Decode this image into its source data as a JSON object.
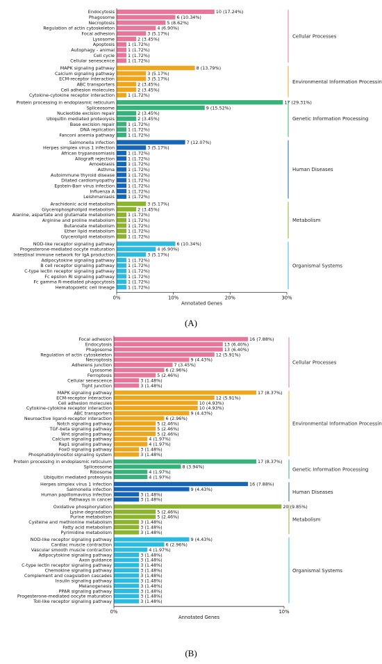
{
  "colors": {
    "Cellular Processes": "#e8769a",
    "Environmental Information Processing": "#eea61d",
    "Genetic Information Processing": "#37b37a",
    "Human Diseases": "#1565b8",
    "Metabolism": "#8db42e",
    "Organismal Systems": "#2cbbe0"
  },
  "panel_labels": [
    "(A)",
    "(B)"
  ],
  "chart_data": [
    {
      "type": "bar",
      "orientation": "horizontal",
      "xlabel": "Annotated Genes",
      "xlim": [
        0,
        30
      ],
      "x_ticks": [
        "0%",
        "10%",
        "20%",
        "30%"
      ],
      "groups": [
        {
          "name": "Cellular Processes",
          "items": [
            {
              "label": "Endocytosis",
              "value": 17.24,
              "text": "10 (17.24%)"
            },
            {
              "label": "Phagosome",
              "value": 10.34,
              "text": "6 (10.34%)"
            },
            {
              "label": "Necroptosis",
              "value": 8.62,
              "text": "5 (8.62%)"
            },
            {
              "label": "Regulation of actin cytoskeleton",
              "value": 6.9,
              "text": "4 (6.90%)"
            },
            {
              "label": "Focal adhesion",
              "value": 5.17,
              "text": "3 (5.17%)"
            },
            {
              "label": "Lysosome",
              "value": 3.45,
              "text": "2 (3.45%)"
            },
            {
              "label": "Apoptosis",
              "value": 1.72,
              "text": "1 (1.72%)"
            },
            {
              "label": "Autophagy - animal",
              "value": 1.72,
              "text": "1 (1.72%)"
            },
            {
              "label": "Cell cycle",
              "value": 1.72,
              "text": "1 (1.72%)"
            },
            {
              "label": "Cellular senescence",
              "value": 1.72,
              "text": "1 (1.72%)"
            }
          ]
        },
        {
          "name": "Environmental Information Processing",
          "items": [
            {
              "label": "MAPK signaling pathway",
              "value": 13.79,
              "text": "8 (13.79%)"
            },
            {
              "label": "Calcium signaling pathway",
              "value": 5.17,
              "text": "3 (5.17%)"
            },
            {
              "label": "ECM-receptor interaction",
              "value": 5.17,
              "text": "3 (5.17%)"
            },
            {
              "label": "ABC transporters",
              "value": 3.45,
              "text": "2 (3.45%)"
            },
            {
              "label": "Cell adhesion molecules",
              "value": 3.45,
              "text": "2 (3.45%)"
            },
            {
              "label": "Cytokine-cytokine receptor interaction",
              "value": 1.72,
              "text": "1 (1.72%)"
            }
          ]
        },
        {
          "name": "Genetic Information Processing",
          "items": [
            {
              "label": "Protein processing in endoplasmic reticulum",
              "value": 29.31,
              "text": "17 (29.31%)"
            },
            {
              "label": "Spliceosome",
              "value": 15.52,
              "text": "9 (15.52%)"
            },
            {
              "label": "Nucleotide excision repair",
              "value": 3.45,
              "text": "2 (3.45%)"
            },
            {
              "label": "Ubiquitin mediated proteolysis",
              "value": 3.45,
              "text": "2 (3.45%)"
            },
            {
              "label": "Base excision repair",
              "value": 1.72,
              "text": "1 (1.72%)"
            },
            {
              "label": "DNA replication",
              "value": 1.72,
              "text": "1 (1.72%)"
            },
            {
              "label": "Fanconi anemia pathway",
              "value": 1.72,
              "text": "1 (1.72%)"
            }
          ]
        },
        {
          "name": "Human Diseases",
          "items": [
            {
              "label": "Salmonella infection",
              "value": 12.07,
              "text": "7 (12.07%)"
            },
            {
              "label": "Herpes simplex virus 1 infection",
              "value": 5.17,
              "text": "3 (5.17%)"
            },
            {
              "label": "African trypanosomiasis",
              "value": 1.72,
              "text": "1 (1.72%)"
            },
            {
              "label": "Allograft rejection",
              "value": 1.72,
              "text": "1 (1.72%)"
            },
            {
              "label": "Amoebiasis",
              "value": 1.72,
              "text": "1 (1.72%)"
            },
            {
              "label": "Asthma",
              "value": 1.72,
              "text": "1 (1.72%)"
            },
            {
              "label": "Autoimmune thyroid disease",
              "value": 1.72,
              "text": "1 (1.72%)"
            },
            {
              "label": "Dilated cardiomyopathy",
              "value": 1.72,
              "text": "1 (1.72%)"
            },
            {
              "label": "Epstein-Barr virus infection",
              "value": 1.72,
              "text": "1 (1.72%)"
            },
            {
              "label": "Influenza A",
              "value": 1.72,
              "text": "1 (1.72%)"
            },
            {
              "label": "Leishmaniasis",
              "value": 1.72,
              "text": "1 (1.72%)"
            }
          ]
        },
        {
          "name": "Metabolism",
          "items": [
            {
              "label": "Arachidonic acid metabolism",
              "value": 5.17,
              "text": "3 (5.17%)"
            },
            {
              "label": "Glycerophospholipid metabolism",
              "value": 3.45,
              "text": "2 (3.45%)"
            },
            {
              "label": "Alanine, aspartate and glutamate metabolism",
              "value": 1.72,
              "text": "1 (1.72%)"
            },
            {
              "label": "Arginine and proline metabolism",
              "value": 1.72,
              "text": "1 (1.72%)"
            },
            {
              "label": "Butanoate metabolism",
              "value": 1.72,
              "text": "1 (1.72%)"
            },
            {
              "label": "Ether lipid metabolism",
              "value": 1.72,
              "text": "1 (1.72%)"
            },
            {
              "label": "Glycerolipid metabolism",
              "value": 1.72,
              "text": "1 (1.72%)"
            }
          ]
        },
        {
          "name": "Organismal Systems",
          "items": [
            {
              "label": "NOD-like receptor signaling pathway",
              "value": 10.34,
              "text": "6 (10.34%)"
            },
            {
              "label": "Progesterone-mediated oocyte maturation",
              "value": 6.9,
              "text": "4 (6.90%)"
            },
            {
              "label": "Intestinal immune network for IgA production",
              "value": 5.17,
              "text": "3 (5.17%)"
            },
            {
              "label": "Adipocytokine signaling pathway",
              "value": 1.72,
              "text": "1 (1.72%)"
            },
            {
              "label": "B cell receptor signaling pathway",
              "value": 1.72,
              "text": "1 (1.72%)"
            },
            {
              "label": "C-type lectin receptor signaling pathway",
              "value": 1.72,
              "text": "1 (1.72%)"
            },
            {
              "label": "Fc epsilon RI signaling pathway",
              "value": 1.72,
              "text": "1 (1.72%)"
            },
            {
              "label": "Fc gamma R-mediated phagocytosis",
              "value": 1.72,
              "text": "1 (1.72%)"
            },
            {
              "label": "Hematopoietic cell lineage",
              "value": 1.72,
              "text": "1 (1.72%)"
            }
          ]
        }
      ]
    },
    {
      "type": "bar",
      "orientation": "horizontal",
      "xlabel": "Annotated Genes",
      "xlim": [
        0,
        10
      ],
      "x_ticks": [
        "0%",
        "10%"
      ],
      "groups": [
        {
          "name": "Cellular Processes",
          "items": [
            {
              "label": "Focal adhesion",
              "value": 7.88,
              "text": "16 (7.88%)"
            },
            {
              "label": "Endocytosis",
              "value": 6.4,
              "text": "13 (6.40%)"
            },
            {
              "label": "Phagosome",
              "value": 6.4,
              "text": "13 (6.40%)"
            },
            {
              "label": "Regulation of actin cytoskeleton",
              "value": 5.91,
              "text": "12 (5.91%)"
            },
            {
              "label": "Necroptosis",
              "value": 4.43,
              "text": "9 (4.43%)"
            },
            {
              "label": "Adherens junction",
              "value": 3.45,
              "text": "7 (3.45%)"
            },
            {
              "label": "Lysosome",
              "value": 2.96,
              "text": "6 (2.96%)"
            },
            {
              "label": "Ferroptosis",
              "value": 2.46,
              "text": "5 (2.46%)"
            },
            {
              "label": "Cellular senescence",
              "value": 1.48,
              "text": "3 (1.48%)"
            },
            {
              "label": "Tight junction",
              "value": 1.48,
              "text": "3 (1.48%)"
            }
          ]
        },
        {
          "name": "Environmental Information Processing",
          "items": [
            {
              "label": "MAPK signaling pathway",
              "value": 8.37,
              "text": "17 (8.37%)"
            },
            {
              "label": "ECM-receptor interaction",
              "value": 5.91,
              "text": "12 (5.91%)"
            },
            {
              "label": "Cell adhesion molecules",
              "value": 4.93,
              "text": "10 (4.93%)"
            },
            {
              "label": "Cytokine-cytokine receptor interaction",
              "value": 4.93,
              "text": "10 (4.93%)"
            },
            {
              "label": "ABC transporters",
              "value": 4.43,
              "text": "9 (4.43%)"
            },
            {
              "label": "Neuroactive ligand-receptor interaction",
              "value": 2.96,
              "text": "6 (2.96%)"
            },
            {
              "label": "Notch signaling pathway",
              "value": 2.46,
              "text": "5 (2.46%)"
            },
            {
              "label": "TGF-beta signaling pathway",
              "value": 2.46,
              "text": "5 (2.46%)"
            },
            {
              "label": "Wnt signaling pathway",
              "value": 2.46,
              "text": "5 (2.46%)"
            },
            {
              "label": "Calcium signaling pathway",
              "value": 1.97,
              "text": "4 (1.97%)"
            },
            {
              "label": "Rap1 signaling pathway",
              "value": 1.97,
              "text": "4 (1.97%)"
            },
            {
              "label": "FoxO signaling pathway",
              "value": 1.48,
              "text": "3 (1.48%)"
            },
            {
              "label": "Phosphatidylinositol signaling system",
              "value": 1.48,
              "text": "3 (1.48%)"
            }
          ]
        },
        {
          "name": "Genetic Information Processing",
          "items": [
            {
              "label": "Protein processing in endoplasmic reticulum",
              "value": 8.37,
              "text": "17 (8.37%)"
            },
            {
              "label": "Spliceosome",
              "value": 3.94,
              "text": "8 (3.94%)"
            },
            {
              "label": "Ribosome",
              "value": 1.97,
              "text": "4 (1.97%)"
            },
            {
              "label": "Ubiquitin mediated proteolysis",
              "value": 1.97,
              "text": "4 (1.97%)"
            }
          ]
        },
        {
          "name": "Human Diseases",
          "items": [
            {
              "label": "Herpes simplex virus 1 infection",
              "value": 7.88,
              "text": "16 (7.88%)"
            },
            {
              "label": "Salmonella infection",
              "value": 4.43,
              "text": "9 (4.43%)"
            },
            {
              "label": "Human papillomavirus infection",
              "value": 1.48,
              "text": "3 (1.48%)"
            },
            {
              "label": "Pathways in cancer",
              "value": 1.48,
              "text": "3 (1.48%)"
            }
          ]
        },
        {
          "name": "Metabolism",
          "items": [
            {
              "label": "Oxidative phosphorylation",
              "value": 9.85,
              "text": "20 (9.85%)"
            },
            {
              "label": "Lysine degradation",
              "value": 2.46,
              "text": "5 (2.46%)"
            },
            {
              "label": "Purine metabolism",
              "value": 2.46,
              "text": "5 (2.46%)"
            },
            {
              "label": "Cysteine and methionine metabolism",
              "value": 1.48,
              "text": "3 (1.48%)"
            },
            {
              "label": "Fatty acid metabolism",
              "value": 1.48,
              "text": "3 (1.48%)"
            },
            {
              "label": "Pyrimidine metabolism",
              "value": 1.48,
              "text": "3 (1.48%)"
            }
          ]
        },
        {
          "name": "Organismal Systems",
          "items": [
            {
              "label": "NOD-like receptor signaling pathway",
              "value": 4.43,
              "text": "9 (4.43%)"
            },
            {
              "label": "Cardiac muscle contraction",
              "value": 2.96,
              "text": "6 (2.96%)"
            },
            {
              "label": "Vascular smooth muscle contraction",
              "value": 1.97,
              "text": "4 (1.97%)"
            },
            {
              "label": "Adipocytokine signaling pathway",
              "value": 1.48,
              "text": "3 (1.48%)"
            },
            {
              "label": "Axon guidance",
              "value": 1.48,
              "text": "3 (1.48%)"
            },
            {
              "label": "C-type lectin receptor signaling pathway",
              "value": 1.48,
              "text": "3 (1.48%)"
            },
            {
              "label": "Chemokine signaling pathway",
              "value": 1.48,
              "text": "3 (1.48%)"
            },
            {
              "label": "Complement and coagulation cascades",
              "value": 1.48,
              "text": "3 (1.48%)"
            },
            {
              "label": "Insulin signaling pathway",
              "value": 1.48,
              "text": "3 (1.48%)"
            },
            {
              "label": "Melanogenesis",
              "value": 1.48,
              "text": "3 (1.48%)"
            },
            {
              "label": "PPAR signaling pathway",
              "value": 1.48,
              "text": "3 (1.48%)"
            },
            {
              "label": "Progesterone-mediated oocyte maturation",
              "value": 1.48,
              "text": "3 (1.48%)"
            },
            {
              "label": "Toll-like receptor signaling pathway",
              "value": 1.48,
              "text": "3 (1.48%)"
            }
          ]
        }
      ]
    }
  ]
}
